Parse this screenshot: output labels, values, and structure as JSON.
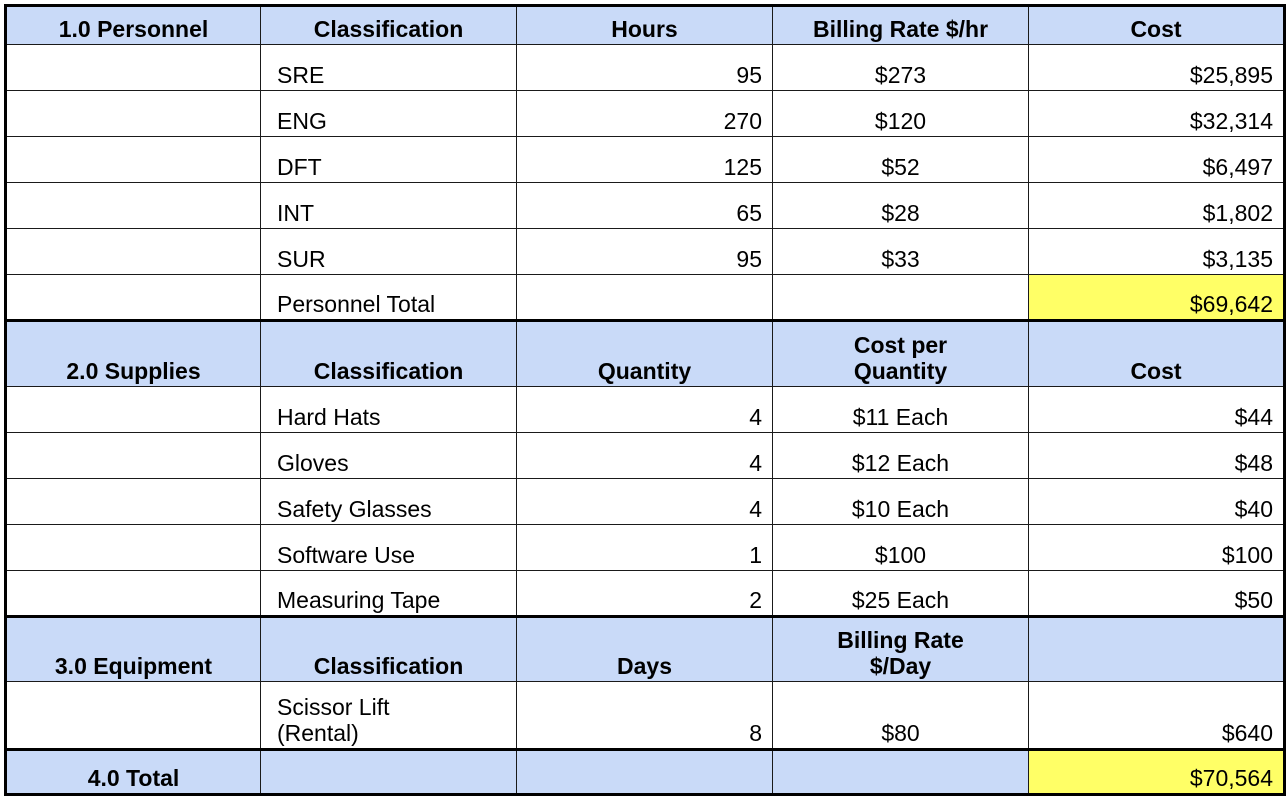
{
  "personnel": {
    "section": "1.0 Personnel",
    "headers": {
      "classification": "Classification",
      "hours": "Hours",
      "rate": "Billing Rate $/hr",
      "cost": "Cost"
    },
    "rows": [
      {
        "classification": "SRE",
        "hours": "95",
        "rate": "$273",
        "cost": "$25,895"
      },
      {
        "classification": "ENG",
        "hours": "270",
        "rate": "$120",
        "cost": "$32,314"
      },
      {
        "classification": "DFT",
        "hours": "125",
        "rate": "$52",
        "cost": "$6,497"
      },
      {
        "classification": "INT",
        "hours": "65",
        "rate": "$28",
        "cost": "$1,802"
      },
      {
        "classification": "SUR",
        "hours": "95",
        "rate": "$33",
        "cost": "$3,135"
      }
    ],
    "total_label": "Personnel Total",
    "total_value": "$69,642"
  },
  "supplies": {
    "section": "2.0 Supplies",
    "headers": {
      "classification": "Classification",
      "quantity": "Quantity",
      "unit_cost_line1": "Cost per",
      "unit_cost_line2": "Quantity",
      "cost": "Cost"
    },
    "rows": [
      {
        "classification": "Hard Hats",
        "quantity": "4",
        "unit_cost": "$11 Each",
        "cost": "$44"
      },
      {
        "classification": "Gloves",
        "quantity": "4",
        "unit_cost": "$12 Each",
        "cost": "$48"
      },
      {
        "classification": "Safety Glasses",
        "quantity": "4",
        "unit_cost": "$10 Each",
        "cost": "$40"
      },
      {
        "classification": "Software Use",
        "quantity": "1",
        "unit_cost": "$100",
        "cost": "$100"
      },
      {
        "classification": "Measuring Tape",
        "quantity": "2",
        "unit_cost": "$25 Each",
        "cost": "$50"
      }
    ]
  },
  "equipment": {
    "section": "3.0 Equipment",
    "headers": {
      "classification": "Classification",
      "days": "Days",
      "rate_line1": "Billing Rate",
      "rate_line2": "$/Day",
      "cost": ""
    },
    "rows": [
      {
        "classification_line1": "Scissor Lift",
        "classification_line2": "(Rental)",
        "days": "8",
        "rate": "$80",
        "cost": "$640"
      }
    ]
  },
  "total": {
    "section": "4.0 Total",
    "value": "$70,564"
  },
  "colors": {
    "header_fill": "#c9daf8",
    "highlight_fill": "#ffff66",
    "border": "#000000"
  }
}
